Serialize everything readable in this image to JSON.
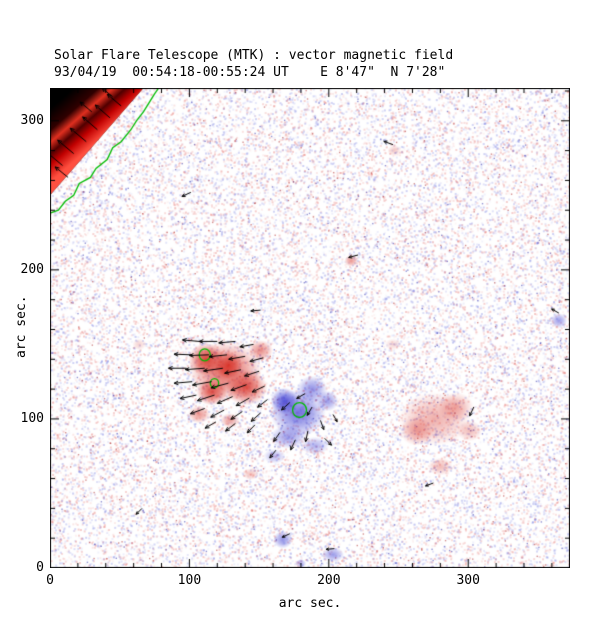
{
  "chart_data": {
    "type": "heatmap",
    "title": "Solar Flare Telescope (MTK) : vector magnetic field",
    "subtitle": "93/04/19  00:54:18-00:55:24 UT    E 8'47\"  N 7'28\"",
    "xlabel": "arc sec.",
    "ylabel": "arc sec.",
    "xlim": [
      0,
      373
    ],
    "ylim": [
      0,
      322
    ],
    "xticks": [
      0,
      100,
      200,
      300
    ],
    "yticks": [
      0,
      100,
      200,
      300
    ],
    "minor_tick_step": 20,
    "colors": {
      "positive": "#dc3228",
      "negative": "#3c3cd7",
      "contour": "#00bb00",
      "vectors": "#000000",
      "offlimb": "#000000",
      "frame": "#000000",
      "background": "#ffffff"
    },
    "noise": {
      "count": 26000,
      "dot": 2,
      "dark_speck_count": 900
    },
    "regions_format": "[x, y, rx, ry, polarity(+1 red/-1 blue), intensity]",
    "regions": [
      [
        126,
        132,
        26,
        20,
        1,
        0.75
      ],
      [
        112,
        140,
        13,
        11,
        1,
        0.85
      ],
      [
        141,
        121,
        15,
        12,
        1,
        0.8
      ],
      [
        116,
        118,
        11,
        9,
        1,
        0.8
      ],
      [
        128,
        136,
        10,
        9,
        1,
        0.85
      ],
      [
        107,
        103,
        8,
        6,
        1,
        0.5
      ],
      [
        129,
        99,
        7,
        5,
        1,
        0.45
      ],
      [
        151,
        146,
        9,
        7,
        1,
        0.55
      ],
      [
        178,
        104,
        20,
        16,
        -1,
        0.7
      ],
      [
        168,
        112,
        10,
        9,
        -1,
        0.8
      ],
      [
        188,
        120,
        11,
        9,
        -1,
        0.55
      ],
      [
        199,
        112,
        8,
        7,
        -1,
        0.5
      ],
      [
        171,
        88,
        13,
        8,
        -1,
        0.5
      ],
      [
        190,
        82,
        10,
        6,
        -1,
        0.4
      ],
      [
        161,
        75,
        8,
        5,
        -1,
        0.35
      ],
      [
        276,
        100,
        26,
        18,
        1,
        0.38
      ],
      [
        263,
        92,
        12,
        10,
        1,
        0.42
      ],
      [
        291,
        108,
        13,
        10,
        1,
        0.38
      ],
      [
        301,
        92,
        9,
        7,
        1,
        0.33
      ],
      [
        280,
        68,
        9,
        6,
        1,
        0.33
      ],
      [
        216,
        206,
        5,
        4,
        1,
        0.5
      ],
      [
        167,
        19,
        7,
        6,
        -1,
        0.55
      ],
      [
        203,
        9,
        8,
        5,
        -1,
        0.5
      ],
      [
        365,
        166,
        6,
        5,
        -1,
        0.5
      ],
      [
        144,
        63,
        6,
        4,
        1,
        0.3
      ],
      [
        64,
        150,
        5,
        4,
        1,
        0.22
      ],
      [
        246,
        150,
        6,
        4,
        1,
        0.2
      ],
      [
        247,
        280,
        5,
        4,
        1,
        0.25
      ],
      [
        180,
        3,
        4,
        3,
        -1,
        0.4
      ]
    ],
    "offlimb_corner": {
      "polygon": [
        [
          0,
          322
        ],
        [
          67,
          322
        ],
        [
          0,
          250
        ]
      ],
      "band_colors": [
        "#ff5040",
        "#c00000",
        "#500000",
        "#e03020",
        "#300000",
        "#000000"
      ]
    },
    "limb_contour": [
      [
        0,
        238
      ],
      [
        6,
        240
      ],
      [
        11,
        246
      ],
      [
        17,
        250
      ],
      [
        21,
        258
      ],
      [
        29,
        262
      ],
      [
        33,
        268
      ],
      [
        41,
        274
      ],
      [
        45,
        282
      ],
      [
        51,
        286
      ],
      [
        58,
        294
      ],
      [
        62,
        300
      ],
      [
        67,
        306
      ],
      [
        71,
        312
      ],
      [
        75,
        318
      ],
      [
        78,
        322
      ]
    ],
    "contour_rings": [
      {
        "x": 111,
        "y": 143,
        "r": 4
      },
      {
        "x": 118,
        "y": 124,
        "r": 3
      },
      {
        "x": 179,
        "y": 106,
        "r": 5
      }
    ],
    "vectors_format": "[x, y, angle_deg_ccw, length_arcsec]",
    "vectors": [
      [
        9,
        270,
        140,
        15
      ],
      [
        17,
        278,
        140,
        15
      ],
      [
        26,
        286,
        140,
        15
      ],
      [
        34,
        294,
        139,
        14
      ],
      [
        43,
        302,
        139,
        14
      ],
      [
        51,
        310,
        140,
        13
      ],
      [
        13,
        262,
        141,
        12
      ],
      [
        30,
        306,
        140,
        11
      ],
      [
        45,
        316,
        140,
        10
      ],
      [
        107,
        152,
        175,
        12
      ],
      [
        120,
        152,
        180,
        13
      ],
      [
        133,
        152,
        185,
        12
      ],
      [
        146,
        150,
        190,
        10
      ],
      [
        102,
        143,
        178,
        13
      ],
      [
        114,
        143,
        182,
        14
      ],
      [
        127,
        143,
        186,
        13
      ],
      [
        140,
        142,
        190,
        12
      ],
      [
        153,
        141,
        195,
        10
      ],
      [
        98,
        134,
        180,
        13
      ],
      [
        111,
        134,
        184,
        14
      ],
      [
        124,
        134,
        188,
        14
      ],
      [
        137,
        133,
        192,
        12
      ],
      [
        150,
        132,
        198,
        11
      ],
      [
        102,
        125,
        185,
        13
      ],
      [
        116,
        125,
        190,
        14
      ],
      [
        128,
        124,
        195,
        13
      ],
      [
        141,
        123,
        200,
        12
      ],
      [
        154,
        122,
        205,
        10
      ],
      [
        105,
        116,
        192,
        12
      ],
      [
        118,
        116,
        198,
        13
      ],
      [
        131,
        115,
        204,
        12
      ],
      [
        143,
        114,
        210,
        11
      ],
      [
        156,
        113,
        218,
        9
      ],
      [
        111,
        107,
        200,
        11
      ],
      [
        125,
        106,
        208,
        11
      ],
      [
        138,
        105,
        214,
        10
      ],
      [
        151,
        104,
        222,
        9
      ],
      [
        119,
        98,
        210,
        9
      ],
      [
        133,
        97,
        218,
        9
      ],
      [
        147,
        96,
        226,
        8
      ],
      [
        165,
        91,
        235,
        8
      ],
      [
        176,
        86,
        245,
        8
      ],
      [
        185,
        92,
        258,
        8
      ],
      [
        194,
        99,
        290,
        7
      ],
      [
        172,
        111,
        222,
        8
      ],
      [
        183,
        117,
        210,
        7
      ],
      [
        162,
        79,
        232,
        7
      ],
      [
        197,
        87,
        315,
        7
      ],
      [
        188,
        108,
        240,
        7
      ],
      [
        203,
        103,
        300,
        6
      ],
      [
        101,
        252,
        205,
        7
      ],
      [
        151,
        173,
        185,
        7
      ],
      [
        246,
        284,
        160,
        7
      ],
      [
        221,
        210,
        195,
        7
      ],
      [
        304,
        108,
        245,
        7
      ],
      [
        365,
        171,
        150,
        6
      ],
      [
        172,
        23,
        205,
        6
      ],
      [
        204,
        13,
        185,
        6
      ],
      [
        66,
        40,
        225,
        6
      ],
      [
        275,
        57,
        200,
        6
      ]
    ]
  }
}
